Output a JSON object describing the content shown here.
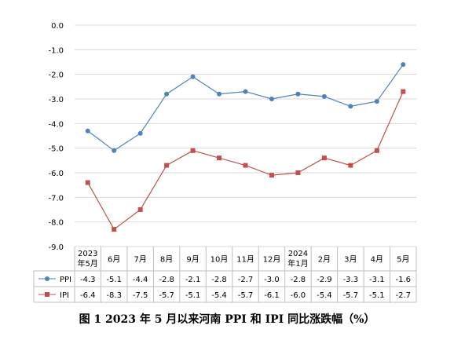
{
  "chart_data": {
    "type": "line",
    "categories": [
      "2023年5月",
      "6月",
      "7月",
      "8月",
      "9月",
      "10月",
      "11月",
      "12月",
      "2024年1月",
      "2月",
      "3月",
      "4月",
      "5月"
    ],
    "category_lines": [
      [
        "2023",
        "年5月"
      ],
      [
        "6月"
      ],
      [
        "7月"
      ],
      [
        "8月"
      ],
      [
        "9月"
      ],
      [
        "10月"
      ],
      [
        "11月"
      ],
      [
        "12月"
      ],
      [
        "2024",
        "年1月"
      ],
      [
        "2月"
      ],
      [
        "3月"
      ],
      [
        "4月"
      ],
      [
        "5月"
      ]
    ],
    "series": [
      {
        "name": "PPI",
        "color": "#4F81BD",
        "marker": "circle",
        "values": [
          -4.3,
          -5.1,
          -4.4,
          -2.8,
          -2.1,
          -2.8,
          -2.7,
          -3.0,
          -2.8,
          -2.9,
          -3.3,
          -3.1,
          -1.6
        ]
      },
      {
        "name": "IPI",
        "color": "#C0504D",
        "marker": "square",
        "values": [
          -6.4,
          -8.3,
          -7.5,
          -5.7,
          -5.1,
          -5.4,
          -5.7,
          -6.1,
          -6.0,
          -5.4,
          -5.7,
          -5.1,
          -2.7
        ]
      }
    ],
    "ylim": [
      -9.0,
      0.0
    ],
    "yticks": [
      "0.0",
      "-1.0",
      "-2.0",
      "-3.0",
      "-4.0",
      "-5.0",
      "-6.0",
      "-7.0",
      "-8.0",
      "-9.0"
    ],
    "grid": true,
    "legend": "data-table"
  },
  "caption": "图 1   2023 年 5 月以来河南 PPI 和 IPI 同比涨跌幅（%）"
}
